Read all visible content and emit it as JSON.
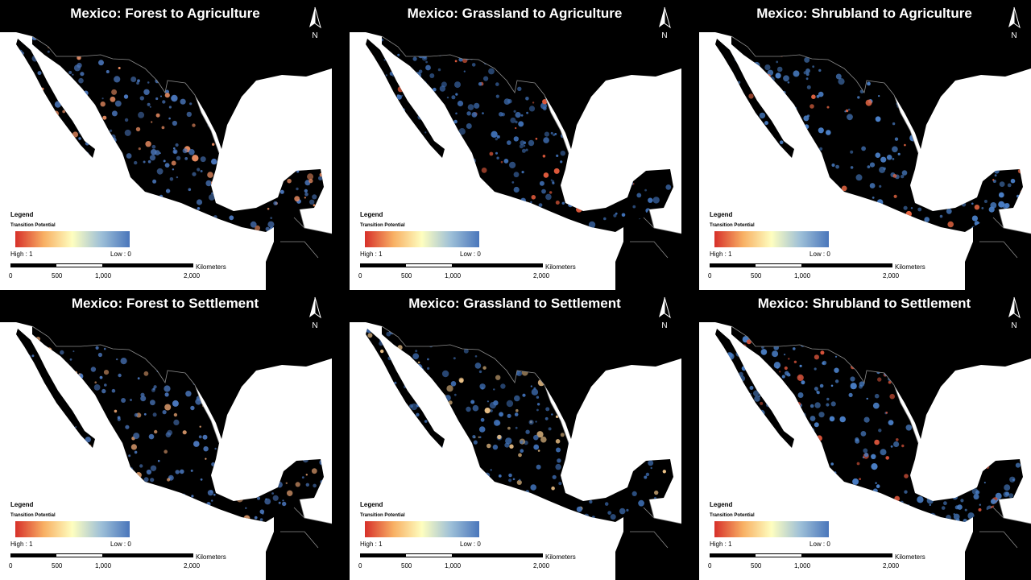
{
  "panels": [
    {
      "title": "Mexico: Forest to Agriculture",
      "accent": "#4a76bb",
      "hotspot": "#e98c61"
    },
    {
      "title": "Mexico: Grassland to Agriculture",
      "accent": "#3f6fb4",
      "hotspot": "#e05a3c"
    },
    {
      "title": "Mexico: Shrubland to Agriculture",
      "accent": "#4a7fc7",
      "hotspot": "#e76743"
    },
    {
      "title": "Mexico: Forest to Settlement",
      "accent": "#4a76bb",
      "hotspot": "#e3a070"
    },
    {
      "title": "Mexico: Grassland to Settlement",
      "accent": "#3f6fb4",
      "hotspot": "#f0c58a"
    },
    {
      "title": "Mexico: Shrubland to Settlement",
      "accent": "#4a7fc7",
      "hotspot": "#d8543b"
    }
  ],
  "north_label": "N",
  "legend": {
    "title": "Legend",
    "subtitle": "Transition Potential",
    "high": "High : 1",
    "low": "Low : 0",
    "colors": [
      "#d7302a",
      "#f8b064",
      "#fefec0",
      "#9ec0d8",
      "#4a76bb"
    ]
  },
  "scale": {
    "unit": "Kilometers",
    "ticks": [
      "0",
      "500",
      "1,000",
      "2,000"
    ]
  },
  "map_colors": {
    "land": "#000000",
    "water": "#ffffff",
    "border": "#8a8a8a"
  }
}
